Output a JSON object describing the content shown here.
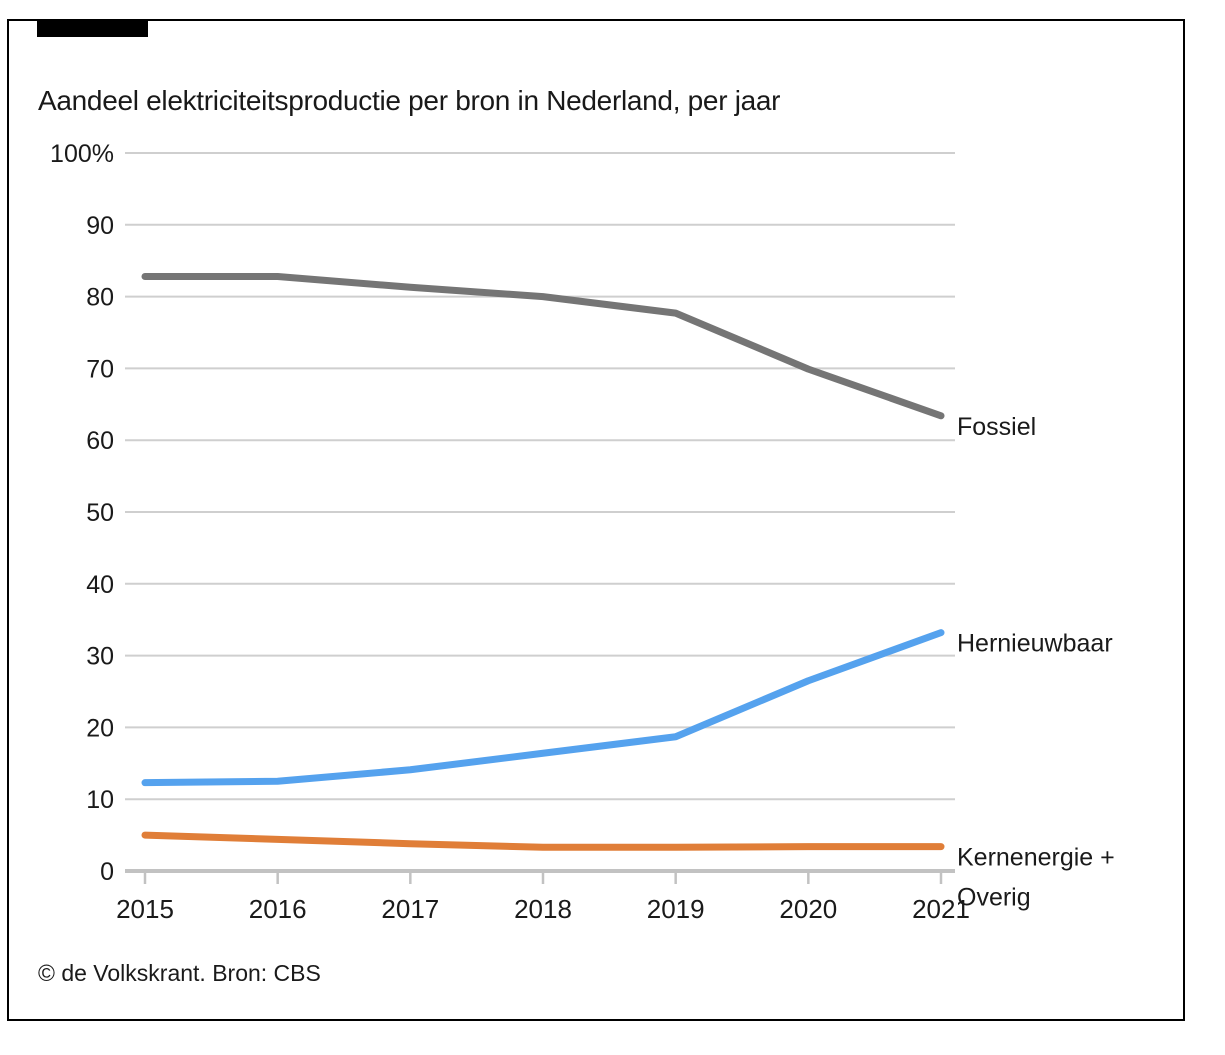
{
  "title": "Aandeel elektriciteitsproductie per bron in Nederland, per jaar",
  "footer": {
    "credit": "© de Volkskrant. Bron: CBS"
  },
  "frame": {
    "border_color": "#000000",
    "logo_bar_color": "#000000"
  },
  "colors": {
    "fossil": "#757575",
    "renewable": "#55A2EE",
    "nuclear_other": "#E07E38",
    "gridline": "#CFCFCF",
    "axis": "#C2C2C2",
    "text": "#1A1A1A"
  },
  "chart_data": {
    "type": "line",
    "title": "Aandeel elektriciteitsproductie per bron in Nederland, per jaar",
    "x": [
      2015,
      2016,
      2017,
      2018,
      2019,
      2020,
      2021
    ],
    "series": [
      {
        "name": "Fossiel",
        "color": "#757575",
        "values": [
          82.8,
          82.8,
          81.3,
          80.0,
          77.7,
          69.9,
          63.4
        ],
        "label_lines": [
          "Fossiel"
        ]
      },
      {
        "name": "Hernieuwbaar",
        "color": "#55A2EE",
        "values": [
          12.3,
          12.5,
          14.1,
          16.4,
          18.7,
          26.5,
          33.2
        ],
        "label_lines": [
          "Hernieuwbaar"
        ]
      },
      {
        "name": "Kernenergie + Overig",
        "color": "#E07E38",
        "values": [
          5.0,
          4.4,
          3.8,
          3.3,
          3.3,
          3.4,
          3.4
        ],
        "label_lines": [
          "Kernenergie +",
          "Overig"
        ]
      }
    ],
    "ylim": [
      0,
      100
    ],
    "yticks": [
      0,
      10,
      20,
      30,
      40,
      50,
      60,
      70,
      80,
      90,
      100
    ],
    "ytick_labels": [
      "0",
      "10",
      "20",
      "30",
      "40",
      "50",
      "60",
      "70",
      "80",
      "90",
      "100%"
    ],
    "xtick_labels": [
      "2015",
      "2016",
      "2017",
      "2018",
      "2019",
      "2020",
      "2021"
    ],
    "grid": true,
    "legend_position": "right-of-line-ends"
  }
}
